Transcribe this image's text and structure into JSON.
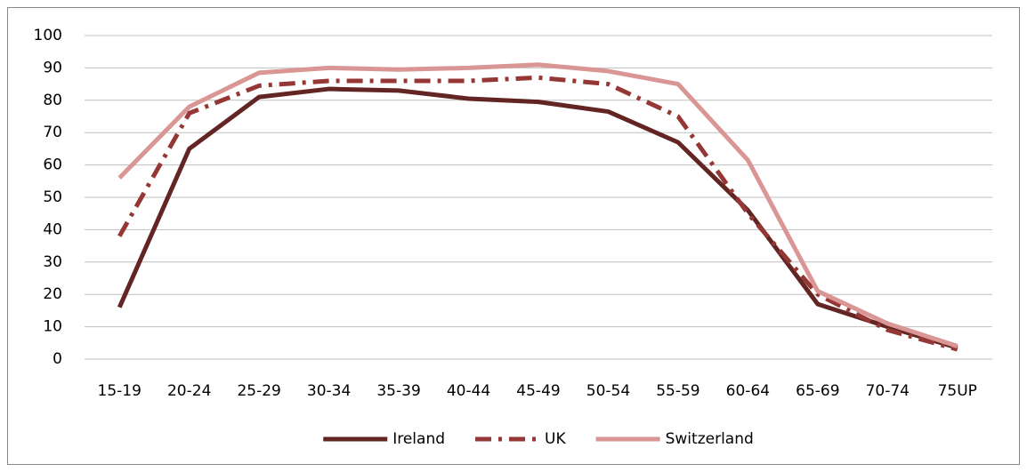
{
  "chart_data": {
    "type": "line",
    "categories": [
      "15-19",
      "20-24",
      "25-29",
      "30-34",
      "35-39",
      "40-44",
      "45-49",
      "50-54",
      "55-59",
      "60-64",
      "65-69",
      "70-74",
      "75UP"
    ],
    "series": [
      {
        "name": "Ireland",
        "color": "#632523",
        "style": "solid",
        "values": [
          16,
          65,
          81,
          83.5,
          83,
          80.5,
          79.5,
          76.5,
          67,
          46,
          17,
          10,
          3.5
        ]
      },
      {
        "name": "UK",
        "color": "#953735",
        "style": "dashdot",
        "values": [
          38,
          76,
          84.5,
          86,
          86,
          86,
          87,
          85,
          75,
          45,
          20,
          9,
          3
        ]
      },
      {
        "name": "Switzerland",
        "color": "#d99694",
        "style": "solid",
        "values": [
          56,
          78,
          88.5,
          90,
          89.5,
          90,
          91,
          89,
          85,
          61.5,
          21,
          11,
          4
        ]
      }
    ],
    "ylim": [
      0,
      100
    ],
    "yticks": [
      0,
      10,
      20,
      30,
      40,
      50,
      60,
      70,
      80,
      90,
      100
    ],
    "grid": true,
    "legend": "bottom"
  }
}
